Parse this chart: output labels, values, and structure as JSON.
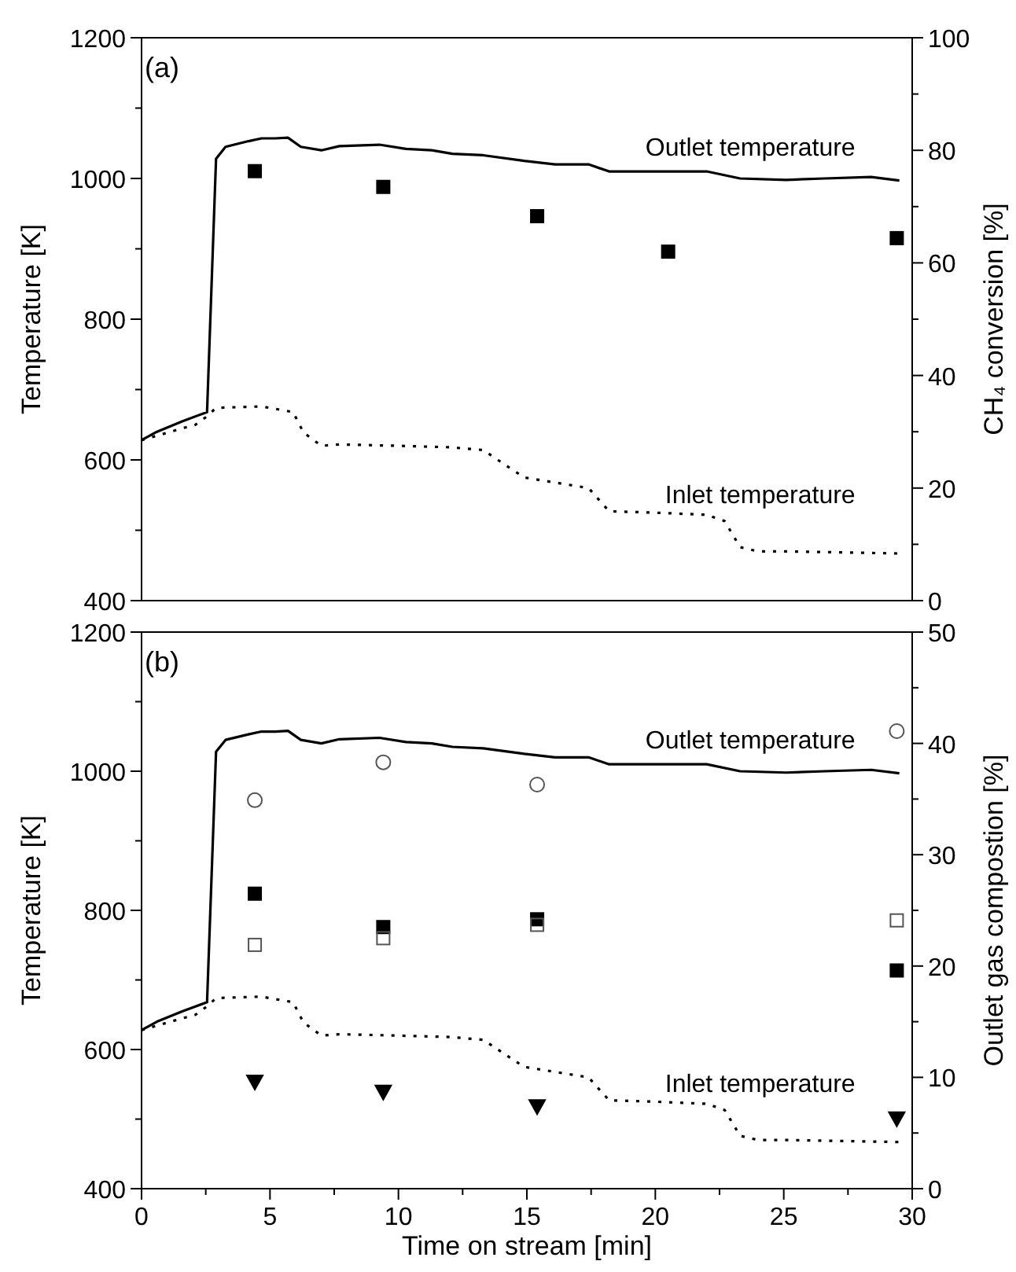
{
  "chart_data": [
    {
      "type": "line",
      "annotations": [
        "(a)"
      ],
      "ylabel": "Temperature [K]",
      "y2label": "CH₄ conversion [%]",
      "xlim": [
        0,
        30
      ],
      "ylim": [
        400,
        1200
      ],
      "yticks": [
        400,
        {
          "value": 500,
          "label": null
        },
        600,
        {
          "value": 700,
          "label": null
        },
        800,
        {
          "value": 900,
          "label": null
        },
        1000,
        {
          "value": 1100,
          "label": null
        },
        1200
      ],
      "y2lim": [
        0,
        100
      ],
      "y2ticks": [
        0,
        {
          "value": 10,
          "label": null
        },
        20,
        {
          "value": 30,
          "label": null
        },
        40,
        {
          "value": 50,
          "label": null
        },
        60,
        {
          "value": 70,
          "label": null
        },
        80,
        {
          "value": 90,
          "label": null
        },
        100
      ],
      "tick_labels": "y",
      "series": [
        {
          "name": "Outlet temperature",
          "color": "#000000",
          "line_style": "solid",
          "marker": "none",
          "x": [
            0,
            0.6,
            1.6,
            2.55,
            2.9,
            3.27,
            4.16,
            4.67,
            5.2,
            5.7,
            6.2,
            7.0,
            7.7,
            9.26,
            10.3,
            11.3,
            12.1,
            13.3,
            14.9,
            16.1,
            17.4,
            18.2,
            20,
            22,
            23.3,
            25.1,
            26.6,
            28.4,
            29.5
          ],
          "values": [
            628,
            640,
            655,
            668,
            1028,
            1045,
            1053,
            1057,
            1057,
            1058,
            1045,
            1040,
            1046,
            1048,
            1042,
            1040,
            1035,
            1033,
            1025,
            1020,
            1020,
            1010,
            1010,
            1010,
            1000,
            998,
            1000,
            1002,
            997
          ]
        },
        {
          "name": "Inlet temperature",
          "type": "line",
          "color": "#000000",
          "line_style": "dotted",
          "marker": "none",
          "x": [
            0,
            1.6,
            2.1,
            2.55,
            2.9,
            4.67,
            5.9,
            6.3,
            7.0,
            7.7,
            10,
            12,
            13.3,
            14.4,
            14.9,
            17.4,
            18.2,
            20,
            22,
            22.7,
            23.3,
            24,
            25,
            29.5
          ],
          "values": [
            628,
            645,
            650,
            662,
            674,
            676,
            668,
            639,
            620,
            622,
            620,
            618,
            614,
            587,
            575,
            560,
            527,
            525,
            522,
            513,
            476,
            470,
            470,
            467
          ]
        },
        {
          "type": "scatter",
          "axis": "y2",
          "color": "#000000",
          "marker": "square",
          "x": [
            4.41,
            9.41,
            15.4,
            20.5,
            29.4
          ],
          "values": [
            76.3,
            73.5,
            68.3,
            62.0,
            64.4
          ]
        }
      ]
    },
    {
      "type": "line",
      "annotations": [
        "(b)"
      ],
      "xlabel": "Time on stream [min]",
      "ylabel": "Temperature [K]",
      "y2label": "Outlet gas compostion [%]",
      "xlim": [
        0,
        30
      ],
      "xticks": [
        0,
        {
          "value": 2.5,
          "label": null
        },
        5,
        {
          "value": 7.5,
          "label": null
        },
        10,
        {
          "value": 12.5,
          "label": null
        },
        15,
        {
          "value": 17.5,
          "label": null
        },
        20,
        {
          "value": 22.5,
          "label": null
        },
        25,
        {
          "value": 27.5,
          "label": null
        },
        30
      ],
      "ylim": [
        400,
        1200
      ],
      "yticks": [
        400,
        {
          "value": 500,
          "label": null
        },
        600,
        {
          "value": 700,
          "label": null
        },
        800,
        {
          "value": 900,
          "label": null
        },
        1000,
        {
          "value": 1100,
          "label": null
        },
        1200
      ],
      "y2lim": [
        0,
        50
      ],
      "y2ticks": [
        0,
        {
          "value": 5,
          "label": null
        },
        10,
        {
          "value": 15,
          "label": null
        },
        20,
        {
          "value": 25,
          "label": null
        },
        30,
        {
          "value": 35,
          "label": null
        },
        40,
        {
          "value": 45,
          "label": null
        },
        50
      ],
      "series": [
        {
          "name": "Outlet temperature",
          "color": "#000000",
          "line_style": "solid",
          "marker": "none",
          "x": [
            0,
            0.6,
            1.6,
            2.55,
            2.9,
            3.27,
            4.16,
            4.67,
            5.2,
            5.7,
            6.2,
            7.0,
            7.7,
            9.26,
            10.3,
            11.3,
            12.1,
            13.3,
            14.9,
            16.1,
            17.4,
            18.2,
            20,
            22,
            23.3,
            25.1,
            26.6,
            28.4,
            29.5
          ],
          "values": [
            628,
            640,
            655,
            668,
            1028,
            1045,
            1053,
            1057,
            1057,
            1058,
            1045,
            1040,
            1046,
            1048,
            1042,
            1040,
            1035,
            1033,
            1025,
            1020,
            1020,
            1010,
            1010,
            1010,
            1000,
            998,
            1000,
            1002,
            997
          ]
        },
        {
          "name": "Inlet temperature",
          "type": "line",
          "color": "#000000",
          "line_style": "dotted",
          "marker": "none",
          "x": [
            0,
            1.6,
            2.1,
            2.55,
            2.9,
            4.67,
            5.9,
            6.3,
            7.0,
            7.7,
            10,
            12,
            13.3,
            14.4,
            14.9,
            17.4,
            18.2,
            20,
            22,
            22.7,
            23.3,
            24,
            25,
            29.5
          ],
          "values": [
            628,
            645,
            650,
            662,
            674,
            676,
            668,
            639,
            620,
            622,
            620,
            618,
            614,
            587,
            575,
            560,
            527,
            525,
            522,
            513,
            476,
            470,
            470,
            467
          ]
        },
        {
          "type": "scatter",
          "axis": "y2",
          "color": "#555555",
          "marker": "circle",
          "x": [
            4.41,
            9.41,
            15.4,
            29.4
          ],
          "values": [
            34.9,
            38.3,
            36.3,
            41.1
          ]
        },
        {
          "type": "scatter",
          "axis": "y2",
          "color": "#000000",
          "marker": "square",
          "x": [
            4.41,
            9.41,
            15.4,
            29.4
          ],
          "values": [
            26.5,
            23.5,
            24.2,
            19.6
          ]
        },
        {
          "type": "scatter",
          "axis": "y2",
          "color": "#555555",
          "marker": "square",
          "x": [
            4.41,
            9.41,
            15.4,
            29.4
          ],
          "values": [
            21.9,
            22.5,
            23.7,
            24.1
          ]
        },
        {
          "type": "scatter",
          "axis": "y2",
          "color": "#000000",
          "marker": "triangle",
          "x": [
            4.41,
            9.41,
            15.4,
            29.4
          ],
          "values": [
            9.6,
            8.7,
            7.4,
            6.3
          ]
        }
      ]
    }
  ]
}
